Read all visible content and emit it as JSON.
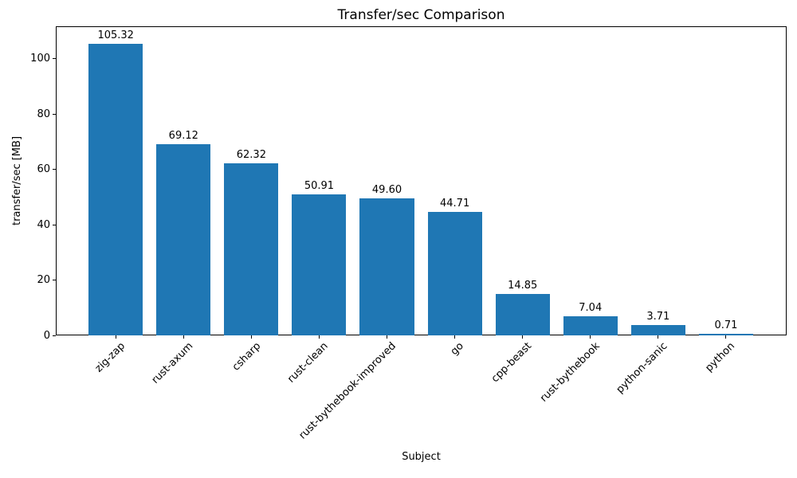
{
  "chart_data": {
    "type": "bar",
    "title": "Transfer/sec Comparison",
    "xlabel": "Subject",
    "ylabel": "transfer/sec [MB]",
    "categories": [
      "zig-zap",
      "rust-axum",
      "csharp",
      "rust-clean",
      "rust-bythebook-improved",
      "go",
      "cpp-beast",
      "rust-bythebook",
      "python-sanic",
      "python"
    ],
    "values": [
      105.32,
      69.12,
      62.32,
      50.91,
      49.6,
      44.71,
      14.85,
      7.04,
      3.71,
      0.71
    ],
    "value_labels": [
      "105.32",
      "69.12",
      "62.32",
      "50.91",
      "49.60",
      "44.71",
      "14.85",
      "7.04",
      "3.71",
      "0.71"
    ],
    "yticks": [
      0,
      20,
      40,
      60,
      80,
      100
    ],
    "ylim": [
      0,
      111.7
    ],
    "grid": false,
    "legend_position": "none",
    "x_tick_rotation_deg": 45
  },
  "colors": {
    "bar": "#1f77b4",
    "text": "#000000",
    "axis": "#000000",
    "background": "#ffffff"
  }
}
